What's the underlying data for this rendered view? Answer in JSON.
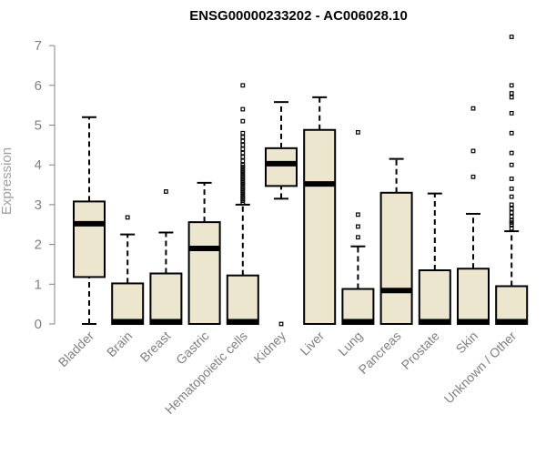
{
  "chart_data": {
    "type": "boxplot",
    "title": "ENSG00000233202 - AC006028.10",
    "xlabel": "",
    "ylabel": "Expression",
    "ylim": [
      0,
      7.3
    ],
    "yticks": [
      "0",
      "1",
      "2",
      "3",
      "4",
      "5",
      "6",
      "7"
    ],
    "box_fill": "#ede6cf",
    "categories": [
      "Bladder",
      "Brain",
      "Breast",
      "Gastric",
      "Hematopoietic cells",
      "Kidney",
      "Liver",
      "Lung",
      "Pancreas",
      "Prostate",
      "Skin",
      "Unknown / Other"
    ],
    "boxes": [
      {
        "name": "Bladder",
        "whisker_low": 0.0,
        "q1": 1.18,
        "median": 2.52,
        "q3": 3.08,
        "whisker_high": 5.2,
        "outliers": []
      },
      {
        "name": "Brain",
        "whisker_low": 0.0,
        "q1": 0.0,
        "median": 0.02,
        "q3": 1.02,
        "whisker_high": 2.25,
        "outliers": [
          2.68
        ]
      },
      {
        "name": "Breast",
        "whisker_low": 0.0,
        "q1": 0.0,
        "median": 0.02,
        "q3": 1.27,
        "whisker_high": 2.3,
        "outliers": [
          3.33
        ]
      },
      {
        "name": "Gastric",
        "whisker_low": 0.0,
        "q1": 0.0,
        "median": 1.9,
        "q3": 2.56,
        "whisker_high": 3.55,
        "outliers": []
      },
      {
        "name": "Hematopoietic cells",
        "whisker_low": 0.0,
        "q1": 0.0,
        "median": 0.02,
        "q3": 1.22,
        "whisker_high": 3.0,
        "outliers": [
          3.05,
          3.1,
          3.15,
          3.2,
          3.25,
          3.3,
          3.35,
          3.4,
          3.45,
          3.5,
          3.55,
          3.6,
          3.65,
          3.7,
          3.75,
          3.8,
          3.85,
          3.9,
          3.95,
          4.0,
          4.1,
          4.2,
          4.3,
          4.4,
          4.5,
          4.6,
          4.7,
          4.8,
          5.1,
          5.4,
          6.0
        ]
      },
      {
        "name": "Kidney",
        "whisker_low": 3.15,
        "q1": 3.47,
        "median": 4.03,
        "q3": 4.42,
        "whisker_high": 5.58,
        "outliers": [
          0.0
        ]
      },
      {
        "name": "Liver",
        "whisker_low": 0.0,
        "q1": 0.0,
        "median": 3.52,
        "q3": 4.88,
        "whisker_high": 5.7,
        "outliers": []
      },
      {
        "name": "Lung",
        "whisker_low": 0.0,
        "q1": 0.0,
        "median": 0.02,
        "q3": 0.88,
        "whisker_high": 1.95,
        "outliers": [
          2.18,
          2.45,
          2.75,
          4.82
        ]
      },
      {
        "name": "Pancreas",
        "whisker_low": 0.0,
        "q1": 0.0,
        "median": 0.84,
        "q3": 3.3,
        "whisker_high": 4.15,
        "outliers": []
      },
      {
        "name": "Prostate",
        "whisker_low": 0.0,
        "q1": 0.0,
        "median": 0.02,
        "q3": 1.35,
        "whisker_high": 3.28,
        "outliers": []
      },
      {
        "name": "Skin",
        "whisker_low": 0.0,
        "q1": 0.0,
        "median": 0.02,
        "q3": 1.39,
        "whisker_high": 2.77,
        "outliers": [
          3.7,
          4.35,
          5.42
        ]
      },
      {
        "name": "Unknown / Other",
        "whisker_low": 0.0,
        "q1": 0.0,
        "median": 0.02,
        "q3": 0.95,
        "whisker_high": 2.33,
        "outliers": [
          2.4,
          2.5,
          2.55,
          2.6,
          2.7,
          2.8,
          2.9,
          3.0,
          3.2,
          3.4,
          3.65,
          4.0,
          4.3,
          4.8,
          5.3,
          5.7,
          5.8,
          6.0,
          7.22
        ]
      }
    ]
  }
}
